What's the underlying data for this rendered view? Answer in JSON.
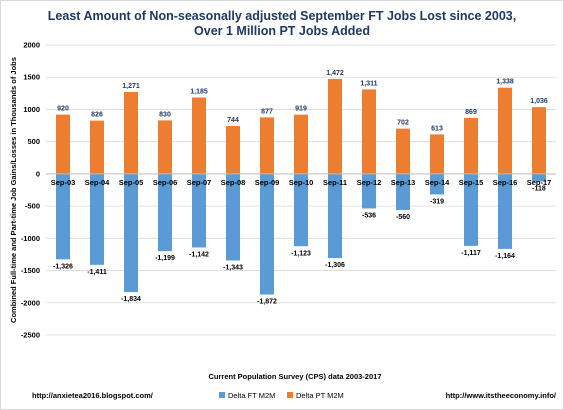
{
  "chart_data": {
    "type": "bar",
    "title_line1": "Least Amount of Non-seasonally adjusted September FT Jobs Lost since 2003,",
    "title_line2": "Over 1 Million PT Jobs Added",
    "ylabel": "Combined Full-time and Part-time Job Gains/Losses in Thousands of Jobs",
    "xlabel": "Current Population Survey (CPS) data 2003-2017",
    "ylim": [
      -2500,
      2000
    ],
    "yticks": [
      "2000",
      "1500",
      "1000",
      "500",
      "0",
      "-500",
      "-1000",
      "-1500",
      "-2000",
      "-2500"
    ],
    "categories": [
      "Sep-03",
      "Sep-04",
      "Sep-05",
      "Sep-06",
      "Sep-07",
      "Sep-08",
      "Sep-09",
      "Sep-10",
      "Sep-11",
      "Sep-12",
      "Sep-13",
      "Sep-14",
      "Sep-15",
      "Sep-16",
      "Sep-17"
    ],
    "series": [
      {
        "name": "Delta FT M2M",
        "color": "#5b9bd5",
        "values": [
          -1326,
          -1411,
          -1834,
          -1199,
          -1142,
          -1343,
          -1872,
          -1123,
          -1306,
          -536,
          -560,
          -319,
          -1117,
          -1164,
          -118
        ],
        "labels": [
          "-1,326",
          "-1,411",
          "-1,834",
          "-1,199",
          "-1,142",
          "-1,343",
          "-1,872",
          "-1,123",
          "-1,306",
          "-536",
          "-560",
          "-319",
          "-1,117",
          "-1,164",
          "-118"
        ]
      },
      {
        "name": "Delta PT M2M",
        "color": "#ed7d31",
        "values": [
          920,
          826,
          1271,
          830,
          1185,
          744,
          877,
          919,
          1472,
          1311,
          702,
          613,
          869,
          1338,
          1036
        ],
        "labels": [
          "920",
          "826",
          "1,271",
          "830",
          "1,185",
          "744",
          "877",
          "919",
          "1,472",
          "1,311",
          "702",
          "613",
          "869",
          "1,338",
          "1,036"
        ]
      }
    ],
    "legend_position": "bottom",
    "grid": true
  },
  "footer": {
    "left": "http://anxietea2016.blogspot.com/",
    "right": "http://www.itstheeconomy.info/"
  }
}
